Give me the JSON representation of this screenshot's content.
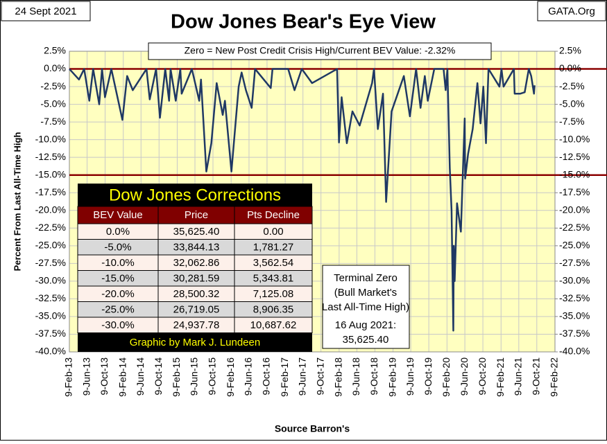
{
  "chart_data": {
    "type": "line",
    "title": "Dow Jones Bear's Eye View",
    "date_label": "24 Sept 2021",
    "source_label": "GATA.Org",
    "subtitle": "Zero = New Post Credit Crisis High/Current  BEV Value:  -2.32%",
    "y_label": "Percent From Last All-Time High",
    "x_label": "Source Barron's",
    "terminal_note": [
      "Terminal Zero",
      "(Bull Market's",
      "Last All-Time High)"
    ],
    "date_note": [
      "16 Aug 2021:",
      "35,625.40"
    ],
    "grid": true,
    "reference_lines": [
      0,
      -15
    ],
    "reference_color": "#8b0000",
    "ylim": [
      2.5,
      -40
    ],
    "y2lim": [
      2.5,
      -40
    ],
    "yticks": [
      {
        "value": 2.5,
        "label": "2.5%"
      },
      {
        "value": 0,
        "label": "0.0%"
      },
      {
        "value": -2.5,
        "label": "-2.5%"
      },
      {
        "value": -5,
        "label": "-5.0%"
      },
      {
        "value": -7.5,
        "label": "-7.5%"
      },
      {
        "value": -10,
        "label": "-10.0%"
      },
      {
        "value": -12.5,
        "label": "-12.5%"
      },
      {
        "value": -15,
        "label": "-15.0%"
      },
      {
        "value": -17.5,
        "label": "-17.5%"
      },
      {
        "value": -20,
        "label": "-20.0%"
      },
      {
        "value": -22.5,
        "label": "-22.5%"
      },
      {
        "value": -25,
        "label": "-25.0%"
      },
      {
        "value": -27.5,
        "label": "-27.5%"
      },
      {
        "value": -30,
        "label": "-30.0%"
      },
      {
        "value": -32.5,
        "label": "-32.5%"
      },
      {
        "value": -35,
        "label": "-35.0%"
      },
      {
        "value": -37.5,
        "label": "-37.5%"
      },
      {
        "value": -40,
        "label": "-40.0%"
      }
    ],
    "y2ticks": [
      {
        "value": 2.5,
        "label": "2.5%"
      },
      {
        "value": 0,
        "label": "0.0%"
      },
      {
        "value": -2.5,
        "label": "-2.5%"
      },
      {
        "value": -5,
        "label": "-5.0%"
      },
      {
        "value": -7.5,
        "label": "-7.5%"
      },
      {
        "value": -10,
        "label": "-10.0%"
      },
      {
        "value": -12.5,
        "label": "-12.5%"
      },
      {
        "value": -15,
        "label": "-15.0%"
      },
      {
        "value": -17.5,
        "label": "-17.5%"
      },
      {
        "value": -20,
        "label": "-20.0%"
      },
      {
        "value": -22.5,
        "label": "-22.5%"
      },
      {
        "value": -25,
        "label": "-25.0%"
      },
      {
        "value": -27.5,
        "label": "-27.5%"
      },
      {
        "value": -30,
        "label": "-30.0%"
      },
      {
        "value": -32.5,
        "label": "-32.5%"
      },
      {
        "value": -35,
        "label": "-35.0%"
      },
      {
        "value": -37.5,
        "label": "-37.5%"
      },
      {
        "value": -40,
        "label": "-40.0%"
      }
    ],
    "xlim": [
      "2013-02-09",
      "2022-02-09"
    ],
    "xticks": [
      {
        "value": "2013-02-09",
        "label": "9-Feb-13"
      },
      {
        "value": "2013-06-09",
        "label": "9-Jun-13"
      },
      {
        "value": "2013-10-09",
        "label": "9-Oct-13"
      },
      {
        "value": "2014-02-09",
        "label": "9-Feb-14"
      },
      {
        "value": "2014-06-09",
        "label": "9-Jun-14"
      },
      {
        "value": "2014-10-09",
        "label": "9-Oct-14"
      },
      {
        "value": "2015-02-09",
        "label": "9-Feb-15"
      },
      {
        "value": "2015-06-09",
        "label": "9-Jun-15"
      },
      {
        "value": "2015-10-09",
        "label": "9-Oct-15"
      },
      {
        "value": "2016-02-09",
        "label": "9-Feb-16"
      },
      {
        "value": "2016-06-09",
        "label": "9-Jun-16"
      },
      {
        "value": "2016-10-09",
        "label": "9-Oct-16"
      },
      {
        "value": "2017-02-09",
        "label": "9-Feb-17"
      },
      {
        "value": "2017-06-09",
        "label": "9-Jun-17"
      },
      {
        "value": "2017-10-09",
        "label": "9-Oct-17"
      },
      {
        "value": "2018-02-09",
        "label": "9-Feb-18"
      },
      {
        "value": "2018-06-09",
        "label": "9-Jun-18"
      },
      {
        "value": "2018-10-09",
        "label": "9-Oct-18"
      },
      {
        "value": "2019-02-09",
        "label": "9-Feb-19"
      },
      {
        "value": "2019-06-09",
        "label": "9-Jun-19"
      },
      {
        "value": "2019-10-09",
        "label": "9-Oct-19"
      },
      {
        "value": "2020-02-09",
        "label": "9-Feb-20"
      },
      {
        "value": "2020-06-09",
        "label": "9-Jun-20"
      },
      {
        "value": "2020-10-09",
        "label": "9-Oct-20"
      },
      {
        "value": "2021-02-09",
        "label": "9-Feb-21"
      },
      {
        "value": "2021-06-09",
        "label": "9-Jun-21"
      },
      {
        "value": "2021-10-09",
        "label": "9-Oct-21"
      },
      {
        "value": "2022-02-09",
        "label": "9-Feb-22"
      }
    ],
    "x": [
      "2013-02-09",
      "2013-04-15",
      "2013-05-20",
      "2013-06-24",
      "2013-07-20",
      "2013-08-30",
      "2013-09-18",
      "2013-10-08",
      "2013-11-20",
      "2014-02-03",
      "2014-03-07",
      "2014-04-14",
      "2014-07-16",
      "2014-08-07",
      "2014-09-19",
      "2014-10-15",
      "2014-11-20",
      "2014-12-16",
      "2014-12-26",
      "2015-01-30",
      "2015-03-02",
      "2015-03-11",
      "2015-05-19",
      "2015-07-08",
      "2015-07-20",
      "2015-08-25",
      "2015-09-28",
      "2015-11-03",
      "2015-12-14",
      "2015-12-29",
      "2016-02-11",
      "2016-03-31",
      "2016-04-20",
      "2016-05-19",
      "2016-06-27",
      "2016-07-20",
      "2016-11-03",
      "2016-11-15",
      "2017-03-01",
      "2017-04-13",
      "2017-06-01",
      "2017-08-10",
      "2018-01-26",
      "2018-02-08",
      "2018-02-26",
      "2018-04-02",
      "2018-05-10",
      "2018-06-28",
      "2018-09-20",
      "2018-10-03",
      "2018-10-29",
      "2018-12-03",
      "2018-12-24",
      "2019-01-30",
      "2019-04-23",
      "2019-06-03",
      "2019-07-15",
      "2019-08-14",
      "2019-09-12",
      "2019-10-02",
      "2019-11-15",
      "2020-01-17",
      "2020-01-31",
      "2020-02-12",
      "2020-02-28",
      "2020-03-11",
      "2020-03-23",
      "2020-03-26",
      "2020-04-01",
      "2020-04-17",
      "2020-05-13",
      "2020-06-08",
      "2020-06-11",
      "2020-07-01",
      "2020-08-01",
      "2020-09-02",
      "2020-09-23",
      "2020-10-12",
      "2020-10-30",
      "2020-11-16",
      "2021-01-29",
      "2021-02-12",
      "2021-02-26",
      "2021-05-07",
      "2021-05-12",
      "2021-06-18",
      "2021-07-19",
      "2021-08-16",
      "2021-09-01",
      "2021-09-20",
      "2021-09-24"
    ],
    "series": [
      {
        "color": "#1f3864",
        "values": [
          0,
          -1.5,
          0,
          -4.5,
          0,
          -5,
          0,
          -4,
          0,
          -7.2,
          -1,
          -3,
          0,
          -4.3,
          0,
          -6.9,
          0,
          -4.5,
          0,
          -4.5,
          0,
          -3.5,
          0,
          -4.5,
          -1.5,
          -14.5,
          -10.5,
          -2,
          -6.5,
          -4.5,
          -14.5,
          -2.5,
          -0.5,
          -3,
          -5.5,
          0,
          -2.7,
          0,
          0,
          -3,
          0,
          -2,
          0,
          -10.4,
          -4,
          -10.5,
          -6,
          -8,
          -2,
          0,
          -8.5,
          -3.5,
          -18.8,
          -6,
          -1,
          -6.7,
          0,
          -5.5,
          -1,
          -4.5,
          0,
          0,
          -3,
          0,
          -14,
          -20,
          -37,
          -25,
          -30,
          -19,
          -23,
          -7,
          -15.5,
          -12,
          -8.5,
          -2,
          -7.7,
          -2.5,
          -10.5,
          0,
          -2.5,
          0,
          -2.5,
          0,
          -3.5,
          -3.5,
          -3.3,
          0,
          -1,
          -3.5,
          -2.32
        ]
      }
    ],
    "table": {
      "title": "Dow Jones Corrections",
      "headers": [
        "BEV Value",
        "Price",
        "Pts Decline"
      ],
      "rows": [
        [
          "0.0%",
          "35,625.40",
          "0.00"
        ],
        [
          "-5.0%",
          "33,844.13",
          "1,781.27"
        ],
        [
          "-10.0%",
          "32,062.86",
          "3,562.54"
        ],
        [
          "-15.0%",
          "30,281.59",
          "5,343.81"
        ],
        [
          "-20.0%",
          "28,500.32",
          "7,125.08"
        ],
        [
          "-25.0%",
          "26,719.05",
          "8,906.35"
        ],
        [
          "-30.0%",
          "24,937.78",
          "10,687.62"
        ]
      ],
      "footer": "Graphic by Mark J. Lundeen"
    }
  }
}
